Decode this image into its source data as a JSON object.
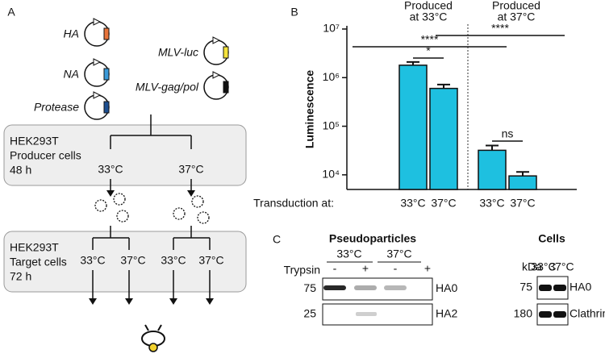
{
  "panel_a": {
    "letter": "A",
    "plasmids": [
      "HA",
      "NA",
      "Protease",
      "MLV-luc",
      "MLV-gag/pol"
    ],
    "producer": {
      "cell_line": "HEK293T",
      "cells": "Producer cells",
      "time": "48 h",
      "temps": [
        "33°C",
        "37°C"
      ]
    },
    "target": {
      "cell_line": "HEK293T",
      "cells": "Target cells",
      "time": "72 h",
      "temps": [
        "33°C",
        "37°C",
        "33°C",
        "37°C"
      ]
    }
  },
  "panel_b": {
    "letter": "B"
  },
  "chart_data": {
    "type": "bar",
    "y_label": "Luminescence",
    "x_label": "Transduction at:",
    "group_labels": [
      [
        "Produced",
        "at 33°C"
      ],
      [
        "Produced",
        "at 37°C"
      ]
    ],
    "categories": [
      "33°C",
      "37°C",
      "33°C",
      "37°C"
    ],
    "values": [
      1800000,
      600000,
      32000,
      9500
    ],
    "errors": [
      300000,
      120000,
      8000,
      2000
    ],
    "color": "#1ec0e0",
    "log_scale": true,
    "ylim": [
      5000,
      10000000
    ],
    "yticks": [
      {
        "value": 10000,
        "label": "10⁴"
      },
      {
        "value": 100000,
        "label": "10⁵"
      },
      {
        "value": 1000000,
        "label": "10⁶"
      },
      {
        "value": 10000000,
        "label": "10⁷"
      }
    ],
    "annotations": [
      "*",
      "****",
      "****",
      "ns"
    ]
  },
  "panel_c": {
    "letter": "C",
    "pseudoparticles": {
      "title": "Pseudoparticles",
      "temps": [
        "33°C",
        "37°C"
      ],
      "treatment": "Trypsin",
      "signs": [
        "-",
        "+",
        "-",
        "+"
      ],
      "markers": [
        "75",
        "25"
      ],
      "bands": [
        "HA0",
        "HA2"
      ]
    },
    "cells": {
      "title": "Cells",
      "unit": "kDa",
      "temps": [
        "33°C",
        "37°C"
      ],
      "markers": [
        "75",
        "180"
      ],
      "bands": [
        "HA0",
        "Clathrin"
      ]
    }
  }
}
